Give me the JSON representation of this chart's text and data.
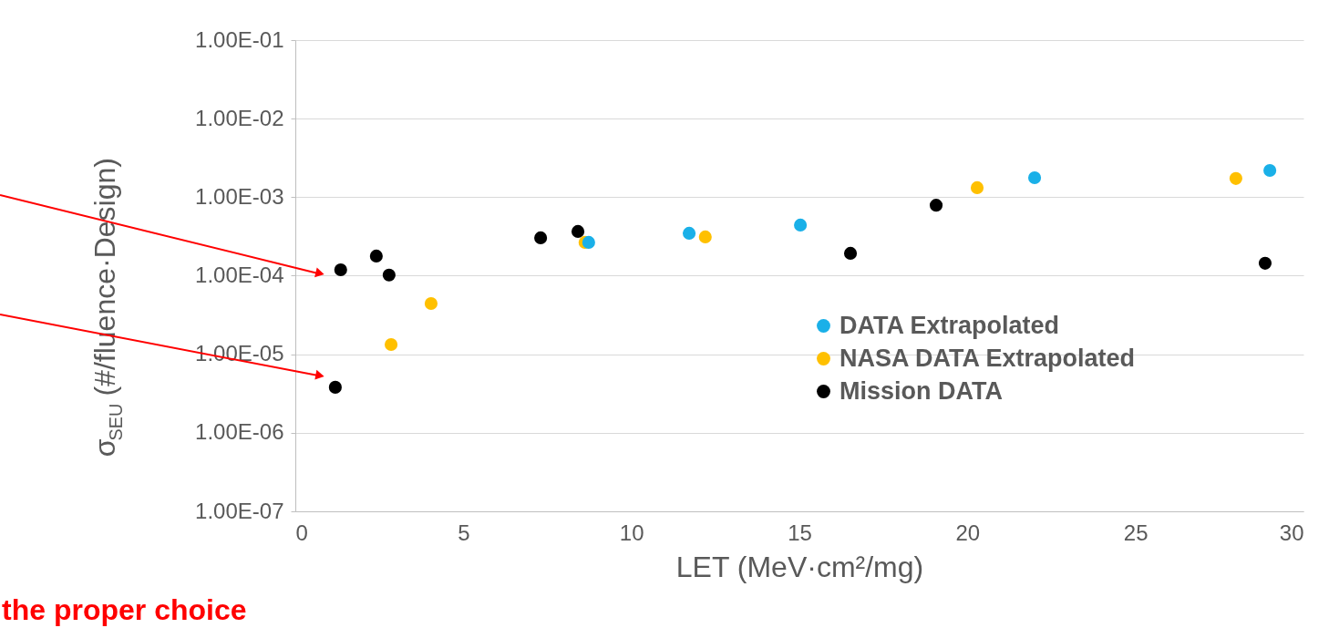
{
  "chart_data": {
    "type": "scatter",
    "xlabel": "LET (MeV·cm²/mg)",
    "ylabel": "σ$_{SEU}$ (#/fluence·Design)",
    "annotations": [
      "the proper choice"
    ],
    "series": [
      {
        "name": "DATA Extrapolated",
        "color": "#1ab0e8",
        "x": [
          8.73,
          11.72,
          15.03,
          22.0,
          29.0
        ],
        "values": [
          0.000266,
          0.000347,
          0.000442,
          0.00177,
          0.00219
        ]
      },
      {
        "name": "NASA DATA Extrapolated",
        "color": "#ffc000",
        "x": [
          2.85,
          4.04,
          8.62,
          12.2,
          20.29,
          27.99
        ],
        "values": [
          1.33e-05,
          4.43e-05,
          0.000266,
          0.000312,
          0.00132,
          0.00173
        ]
      },
      {
        "name": "Mission DATA",
        "color": "#000000",
        "x": [
          1.35,
          2.41,
          2.79,
          1.19,
          7.3,
          8.41,
          16.52,
          19.07,
          28.86
        ],
        "values": [
          0.000119,
          0.000178,
          0.000102,
          3.8e-06,
          0.000304,
          0.000366,
          0.000193,
          0.00079,
          0.000144
        ]
      }
    ],
    "xlim": [
      0,
      30
    ],
    "xticks": [
      0,
      5,
      10,
      15,
      20,
      25,
      30
    ],
    "log": "y",
    "ylim": [
      1e-07,
      0.1
    ],
    "yticks": [
      {
        "value": 1e-07,
        "label": "1.00E-07"
      },
      {
        "value": 1e-06,
        "label": "1.00E-06"
      },
      {
        "value": 1e-05,
        "label": "1.00E-05"
      },
      {
        "value": 0.0001,
        "label": "1.00E-04"
      },
      {
        "value": 0.001,
        "label": "1.00E-03"
      },
      {
        "value": 0.01,
        "label": "1.00E-02"
      },
      {
        "value": 0.1,
        "label": "1.00E-01"
      }
    ],
    "grid": "y",
    "legend": "bottom right",
    "marker": "circle"
  }
}
